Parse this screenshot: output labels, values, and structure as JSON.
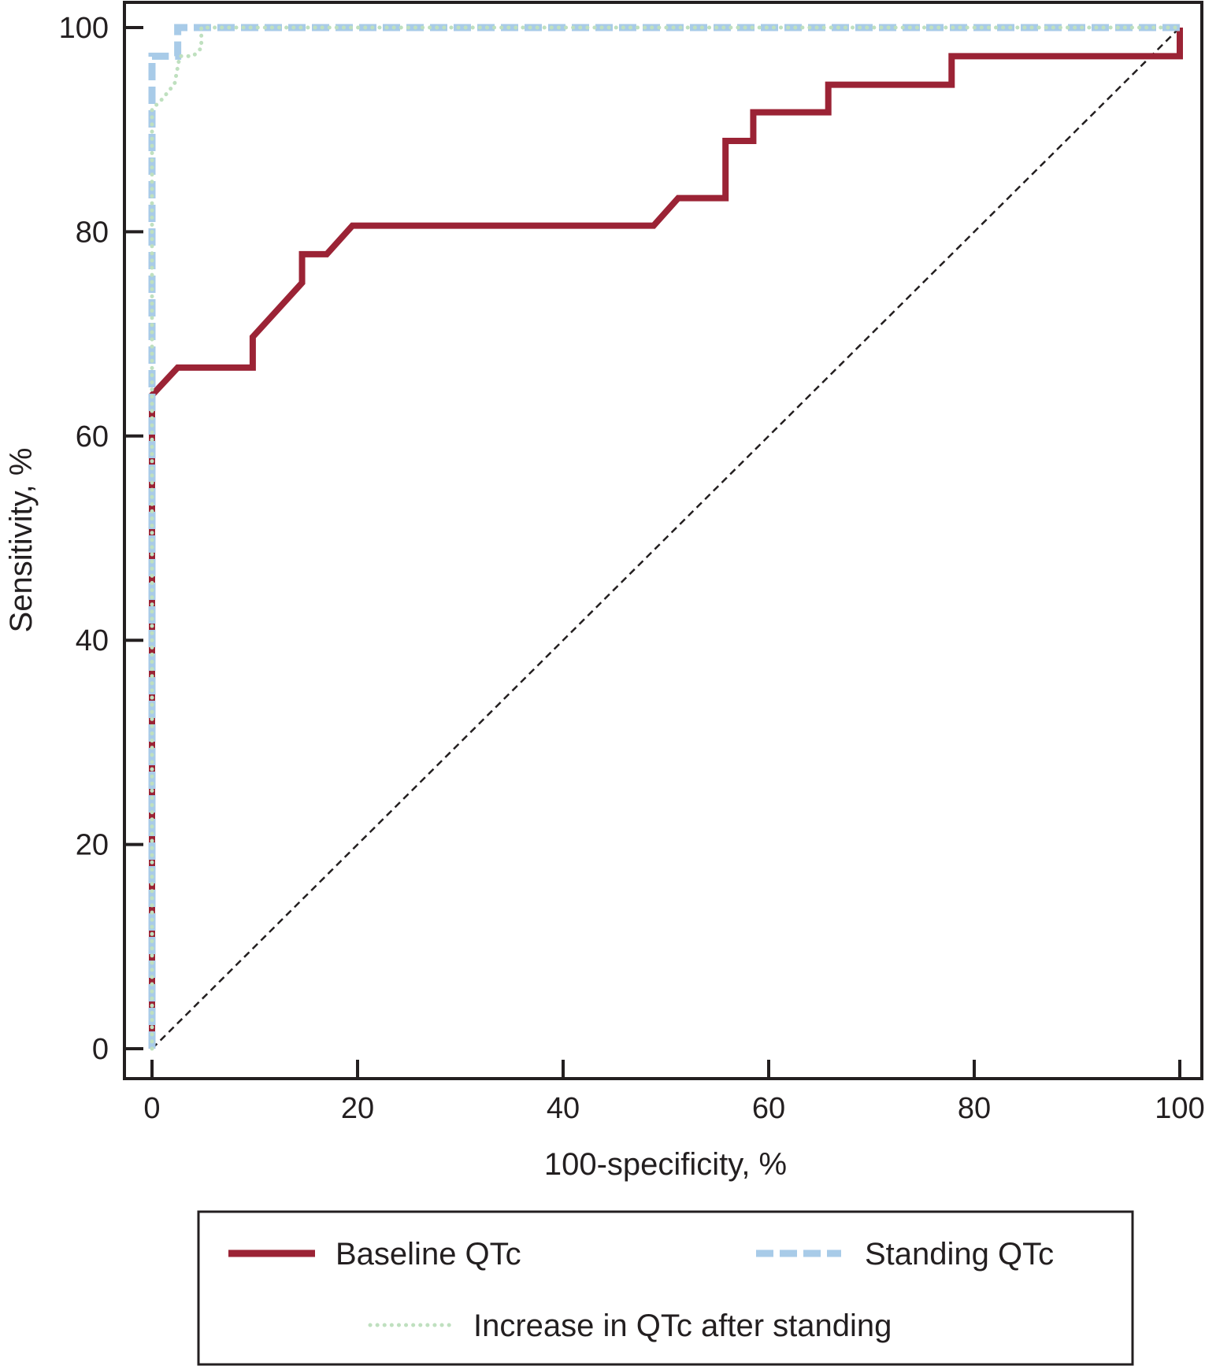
{
  "chart_data": {
    "type": "line",
    "title": "",
    "xlabel": "100-specificity, %",
    "ylabel": "Sensitivity, %",
    "xlim": [
      0,
      100
    ],
    "ylim": [
      0,
      100
    ],
    "xticks": [
      0,
      20,
      40,
      60,
      80,
      100
    ],
    "yticks": [
      0,
      20,
      40,
      60,
      80,
      100
    ],
    "grid": false,
    "legend_position": "bottom",
    "reference_line": {
      "style": "dashed",
      "color": "#231f20",
      "x": [
        0,
        100
      ],
      "y": [
        0,
        100
      ]
    },
    "series": [
      {
        "name": "Baseline QTc",
        "color": "#9b2335",
        "style": "solid",
        "x": [
          0,
          0,
          2.5,
          9.8,
          9.8,
          14.6,
          14.6,
          17.0,
          19.5,
          48.8,
          51.2,
          55.8,
          55.8,
          58.5,
          58.5,
          65.8,
          65.8,
          77.8,
          77.8,
          100,
          100
        ],
        "y": [
          0,
          64.0,
          66.7,
          66.7,
          69.7,
          75.0,
          77.8,
          77.8,
          80.6,
          80.6,
          83.3,
          83.3,
          88.9,
          88.9,
          91.7,
          91.7,
          94.4,
          94.4,
          97.2,
          97.2,
          100
        ]
      },
      {
        "name": "Standing QTc",
        "color": "#a8cbe8",
        "style": "dashed",
        "x": [
          0,
          0,
          2.5,
          2.5,
          100
        ],
        "y": [
          0,
          97.2,
          97.2,
          100,
          100
        ]
      },
      {
        "name": "Increase in QTc after standing",
        "color": "#bfe0bf",
        "style": "dotted",
        "x": [
          0,
          0,
          1.0,
          2.2,
          2.7,
          4.0,
          4.8,
          4.8,
          100
        ],
        "y": [
          0,
          92.0,
          93.0,
          94.5,
          97.2,
          97.2,
          98.0,
          100,
          100
        ]
      }
    ]
  }
}
